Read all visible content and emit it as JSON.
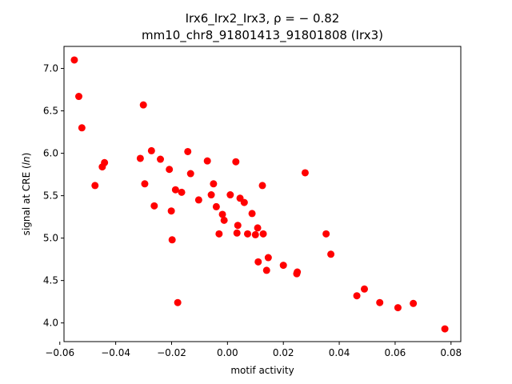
{
  "chart_data": {
    "type": "scatter",
    "title_line1": "Irx6_Irx2_Irx3, ρ = − 0.82",
    "title_line2": "mm10_chr8_91801413_91801808 (Irx3)",
    "xlabel": "motif activity",
    "ylabel_prefix": "signal at CRE (",
    "ylabel_italic": "ln",
    "ylabel_suffix": ")",
    "xlim": [
      -0.0585,
      0.0835
    ],
    "ylim": [
      3.78,
      7.26
    ],
    "xticks": [
      -0.06,
      -0.04,
      -0.02,
      0.0,
      0.02,
      0.04,
      0.06,
      0.08
    ],
    "xtick_labels": [
      "−0.06",
      "−0.04",
      "−0.02",
      "0.00",
      "0.02",
      "0.04",
      "0.06",
      "0.08"
    ],
    "yticks": [
      4.0,
      4.5,
      5.0,
      5.5,
      6.0,
      6.5,
      7.0
    ],
    "ytick_labels": [
      "4.0",
      "4.5",
      "5.0",
      "5.5",
      "6.0",
      "6.5",
      "7.0"
    ],
    "grid": false,
    "marker_color": "#ff0000",
    "points": [
      [
        -0.0548,
        7.1
      ],
      [
        -0.0532,
        6.67
      ],
      [
        -0.0521,
        6.3
      ],
      [
        -0.0474,
        5.62
      ],
      [
        -0.0448,
        5.84
      ],
      [
        -0.044,
        5.89
      ],
      [
        -0.0312,
        5.94
      ],
      [
        -0.0301,
        6.57
      ],
      [
        -0.0296,
        5.64
      ],
      [
        -0.0272,
        6.03
      ],
      [
        -0.0262,
        5.38
      ],
      [
        -0.024,
        5.93
      ],
      [
        -0.0208,
        5.81
      ],
      [
        -0.0201,
        5.32
      ],
      [
        -0.0198,
        4.98
      ],
      [
        -0.0186,
        5.57
      ],
      [
        -0.0178,
        4.24
      ],
      [
        -0.0164,
        5.54
      ],
      [
        -0.0142,
        6.02
      ],
      [
        -0.0132,
        5.76
      ],
      [
        -0.0103,
        5.45
      ],
      [
        -0.0072,
        5.91
      ],
      [
        -0.0058,
        5.51
      ],
      [
        -0.005,
        5.64
      ],
      [
        -0.004,
        5.37
      ],
      [
        -0.003,
        5.05
      ],
      [
        -0.0018,
        5.28
      ],
      [
        -0.0012,
        5.21
      ],
      [
        0.001,
        5.51
      ],
      [
        0.003,
        5.9
      ],
      [
        0.0034,
        5.06
      ],
      [
        0.0037,
        5.15
      ],
      [
        0.0045,
        5.47
      ],
      [
        0.006,
        5.42
      ],
      [
        0.0072,
        5.05
      ],
      [
        0.0088,
        5.29
      ],
      [
        0.01,
        5.04
      ],
      [
        0.0108,
        5.12
      ],
      [
        0.011,
        4.72
      ],
      [
        0.0125,
        5.62
      ],
      [
        0.0128,
        5.05
      ],
      [
        0.014,
        4.62
      ],
      [
        0.0146,
        4.77
      ],
      [
        0.02,
        4.68
      ],
      [
        0.0248,
        4.58
      ],
      [
        0.025,
        4.6
      ],
      [
        0.0278,
        5.77
      ],
      [
        0.0353,
        5.05
      ],
      [
        0.037,
        4.81
      ],
      [
        0.0463,
        4.32
      ],
      [
        0.049,
        4.4
      ],
      [
        0.0545,
        4.24
      ],
      [
        0.061,
        4.18
      ],
      [
        0.0665,
        4.23
      ],
      [
        0.0778,
        3.93
      ]
    ]
  }
}
